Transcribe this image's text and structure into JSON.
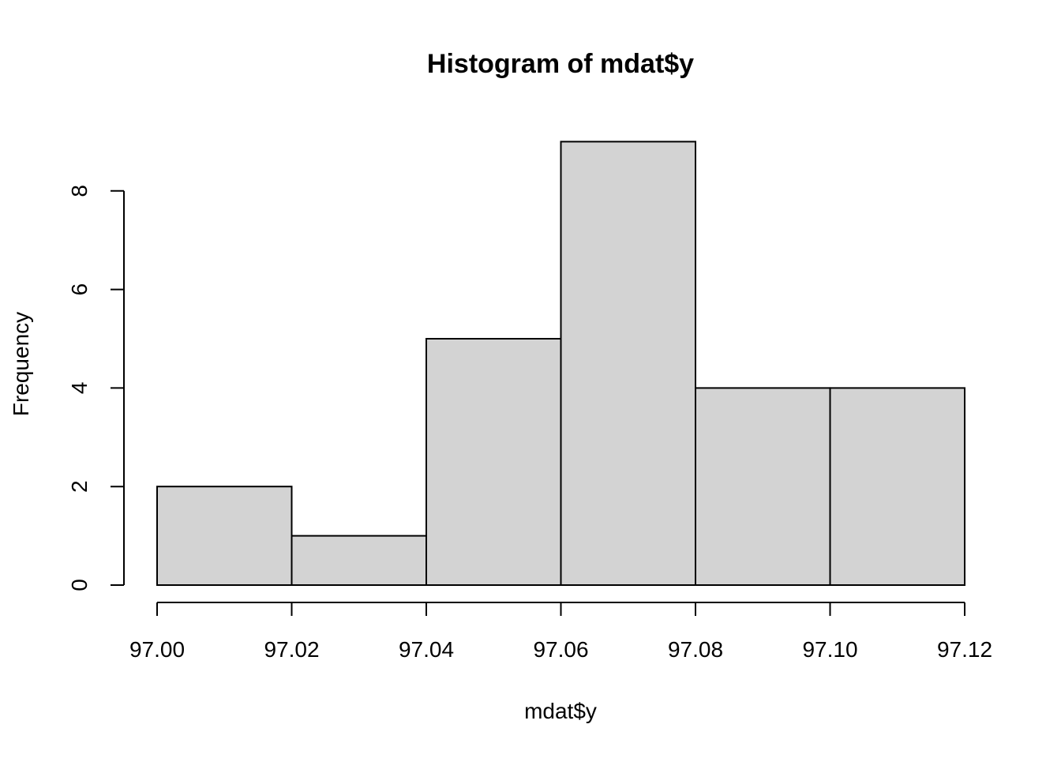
{
  "chart_data": {
    "type": "bar",
    "title": "Histogram of mdat$y",
    "xlabel": "mdat$y",
    "ylabel": "Frequency",
    "bins": [
      {
        "start": 97.0,
        "end": 97.02,
        "count": 2
      },
      {
        "start": 97.02,
        "end": 97.04,
        "count": 1
      },
      {
        "start": 97.04,
        "end": 97.06,
        "count": 5
      },
      {
        "start": 97.06,
        "end": 97.08,
        "count": 9
      },
      {
        "start": 97.08,
        "end": 97.1,
        "count": 4
      },
      {
        "start": 97.1,
        "end": 97.12,
        "count": 4
      }
    ],
    "xlim": [
      97.0,
      97.12
    ],
    "ylim": [
      0,
      9
    ],
    "x_ticks": [
      "97.00",
      "97.02",
      "97.04",
      "97.06",
      "97.08",
      "97.10",
      "97.12"
    ],
    "y_ticks": [
      "0",
      "2",
      "4",
      "6",
      "8"
    ],
    "colors": {
      "bar_fill": "#d3d3d3",
      "bar_stroke": "#000000"
    },
    "grid": false,
    "legend": "none"
  }
}
